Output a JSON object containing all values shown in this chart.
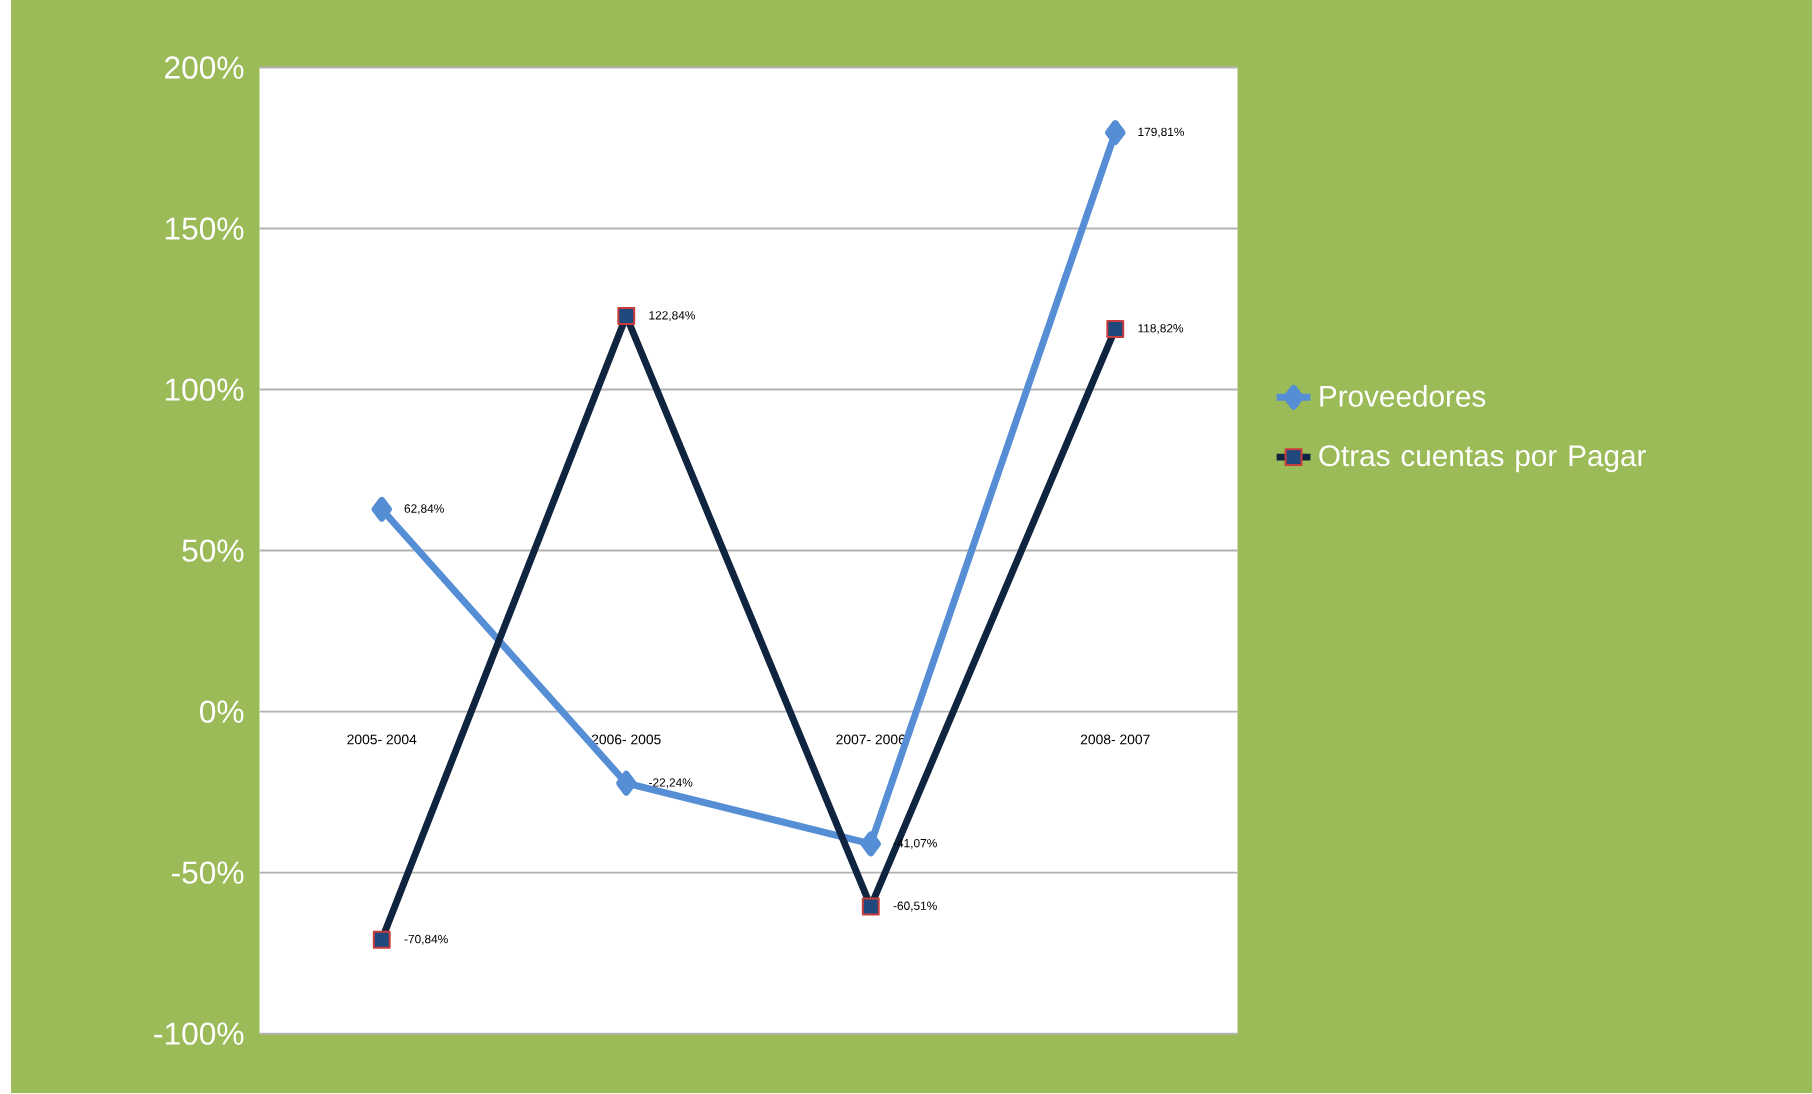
{
  "chart_data": {
    "type": "line",
    "categories": [
      "2005- 2004",
      "2006- 2005",
      "2007- 2006",
      "2008- 2007"
    ],
    "series": [
      {
        "name": "Proveedores",
        "color": "#558ed5",
        "marker": "diamond",
        "values": [
          62.84,
          -22.24,
          -41.07,
          179.81
        ],
        "value_labels": [
          "62,84%",
          "-22,24%",
          "-41,07%",
          "179,81%"
        ]
      },
      {
        "name": "Otras cuentas por Pagar",
        "color": "#0f243e",
        "marker": "square",
        "values": [
          -70.84,
          122.84,
          -60.51,
          118.82
        ],
        "value_labels": [
          "-70,84%",
          "122,84%",
          "-60,51%",
          "118,82%"
        ]
      }
    ],
    "ylim": [
      -100,
      200
    ],
    "yticks": [
      {
        "value": -100,
        "label": "-100%"
      },
      {
        "value": -50,
        "label": "-50%"
      },
      {
        "value": 0,
        "label": "0%"
      },
      {
        "value": 50,
        "label": "50%"
      },
      {
        "value": 100,
        "label": "100%"
      },
      {
        "value": 150,
        "label": "150%"
      },
      {
        "value": 200,
        "label": "200%"
      }
    ],
    "grid": "y",
    "legend": "right",
    "line_style": "solid"
  }
}
